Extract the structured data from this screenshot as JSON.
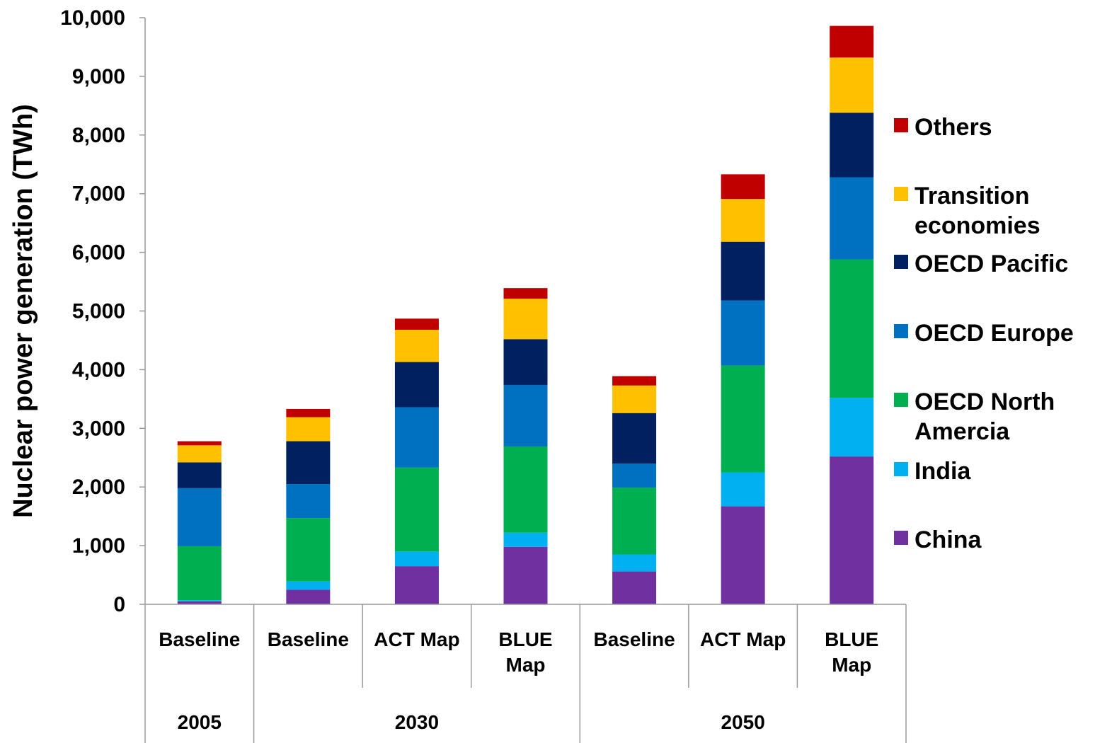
{
  "chart_data": {
    "type": "bar",
    "stacked": true,
    "ylabel": "Nuclear power generation (TWh)",
    "xlabel": "",
    "ylim": [
      0,
      10000
    ],
    "yticks": [
      0,
      1000,
      2000,
      3000,
      4000,
      5000,
      6000,
      7000,
      8000,
      9000,
      10000
    ],
    "ytick_labels": [
      "0",
      "1,000",
      "2,000",
      "3,000",
      "4,000",
      "5,000",
      "6,000",
      "7,000",
      "8,000",
      "9,000",
      "10,000"
    ],
    "grid": false,
    "legend_position": "right",
    "categories": [
      "Baseline",
      "Baseline",
      "ACT Map",
      "BLUE Map",
      "Baseline",
      "ACT Map",
      "BLUE Map"
    ],
    "groups": [
      {
        "label": "2005",
        "span": 1
      },
      {
        "label": "2030",
        "span": 3
      },
      {
        "label": "2050",
        "span": 3
      }
    ],
    "series": [
      {
        "name": "China",
        "color": "#7030A0",
        "values": [
          50,
          250,
          650,
          980,
          560,
          1670,
          2520
        ]
      },
      {
        "name": "India",
        "color": "#00B0F0",
        "values": [
          20,
          140,
          250,
          240,
          290,
          580,
          1000
        ]
      },
      {
        "name": "OECD North Amercia",
        "color": "#00B050",
        "values": [
          920,
          1080,
          1430,
          1470,
          1140,
          1820,
          2360
        ]
      },
      {
        "name": "OECD Europe",
        "color": "#0070C0",
        "values": [
          990,
          580,
          1030,
          1050,
          410,
          1110,
          1400
        ]
      },
      {
        "name": "OECD Pacific",
        "color": "#002060",
        "values": [
          440,
          730,
          770,
          780,
          860,
          1000,
          1100
        ]
      },
      {
        "name": "Transition economies",
        "color": "#FFC000",
        "values": [
          290,
          410,
          550,
          690,
          470,
          730,
          940
        ]
      },
      {
        "name": "Others",
        "color": "#C00000",
        "values": [
          70,
          140,
          190,
          180,
          160,
          420,
          540
        ]
      }
    ]
  },
  "legend": {
    "items": [
      {
        "lines": [
          "Others"
        ],
        "color": "#C00000"
      },
      {
        "lines": [
          "Transition",
          "economies"
        ],
        "color": "#FFC000"
      },
      {
        "lines": [
          "OECD Pacific"
        ],
        "color": "#002060"
      },
      {
        "lines": [
          "OECD Europe"
        ],
        "color": "#0070C0"
      },
      {
        "lines": [
          "OECD North",
          "Amercia"
        ],
        "color": "#00B050"
      },
      {
        "lines": [
          "India"
        ],
        "color": "#00B0F0"
      },
      {
        "lines": [
          "China"
        ],
        "color": "#7030A0"
      }
    ]
  },
  "category_lines": [
    [
      "Baseline"
    ],
    [
      "Baseline"
    ],
    [
      "ACT Map"
    ],
    [
      "BLUE",
      "Map"
    ],
    [
      "Baseline"
    ],
    [
      "ACT Map"
    ],
    [
      "BLUE",
      "Map"
    ]
  ]
}
